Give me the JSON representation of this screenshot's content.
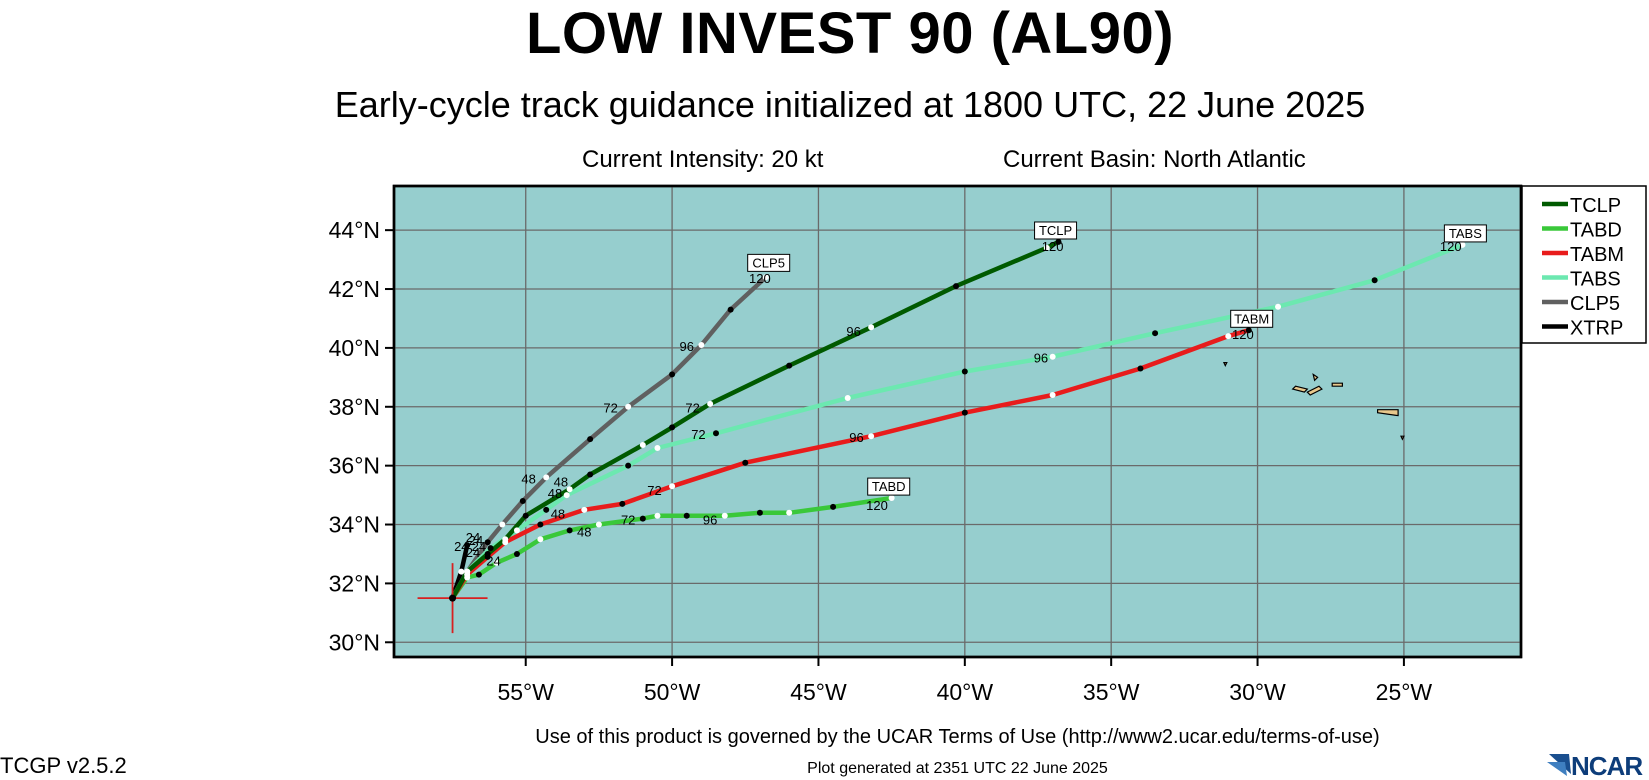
{
  "title": "LOW INVEST 90 (AL90)",
  "subtitle": "Early-cycle track guidance initialized at 1800 UTC, 22 June 2025",
  "current_intensity": "Current Intensity: 20 kt",
  "current_basin": "Current Basin: North Atlantic",
  "terms": "Use of this product is governed by the UCAR Terms of Use (http://www2.ucar.edu/terms-of-use)",
  "version": "TCGP v2.5.2",
  "generated": "Plot generated at 2351 UTC   22 June 2025",
  "logo_text": "NCAR",
  "colors": {
    "ocean": "#96cece",
    "grid": "#6a6a6a",
    "land": "#e8c88c",
    "center_cross": "#d82020"
  },
  "map_extent": {
    "lon": [
      -59.5,
      -21
    ],
    "lat": [
      29.5,
      45.5
    ]
  },
  "ticks": {
    "lat": [
      {
        "value": 30,
        "label": "30°N"
      },
      {
        "value": 32,
        "label": "32°N"
      },
      {
        "value": 34,
        "label": "34°N"
      },
      {
        "value": 36,
        "label": "36°N"
      },
      {
        "value": 38,
        "label": "38°N"
      },
      {
        "value": 40,
        "label": "40°N"
      },
      {
        "value": 42,
        "label": "42°N"
      },
      {
        "value": 44,
        "label": "44°N"
      }
    ],
    "lon": [
      {
        "value": -55,
        "label": "55°W"
      },
      {
        "value": -50,
        "label": "50°W"
      },
      {
        "value": -45,
        "label": "45°W"
      },
      {
        "value": -40,
        "label": "40°W"
      },
      {
        "value": -35,
        "label": "35°W"
      },
      {
        "value": -30,
        "label": "30°W"
      },
      {
        "value": -25,
        "label": "25°W"
      }
    ]
  },
  "storm_center": {
    "lon": -57.5,
    "lat": 31.5
  },
  "tracks": [
    {
      "name": "TCLP",
      "color": "#005a00",
      "points": [
        [
          -57.5,
          31.5
        ],
        [
          -57.0,
          32.4
        ],
        [
          -56.3,
          33.0
        ],
        [
          -55.7,
          33.5
        ],
        [
          -55.0,
          34.3
        ],
        [
          -53.5,
          35.2
        ],
        [
          -52.8,
          35.7
        ],
        [
          -51.0,
          36.7
        ],
        [
          -50.0,
          37.3
        ],
        [
          -48.7,
          38.1
        ],
        [
          -46.0,
          39.4
        ],
        [
          -43.2,
          40.7
        ],
        [
          -40.3,
          42.1
        ],
        [
          -37.2,
          43.4
        ],
        [
          -36.8,
          43.6
        ]
      ],
      "labels": [
        {
          "text": "24",
          "lon": -56.7,
          "lat": 33.3
        },
        {
          "text": "48",
          "lon": -53.8,
          "lat": 35.3
        },
        {
          "text": "72",
          "lon": -49.3,
          "lat": 37.8
        },
        {
          "text": "96",
          "lon": -43.8,
          "lat": 40.4
        },
        {
          "text": "120",
          "lon": -37.0,
          "lat": 43.3
        }
      ],
      "tag": {
        "text": "TCLP",
        "lon": -36.9,
        "lat": 43.7
      }
    },
    {
      "name": "TABD",
      "color": "#3ac83a",
      "points": [
        [
          -57.5,
          31.5
        ],
        [
          -57.0,
          32.2
        ],
        [
          -56.6,
          32.3
        ],
        [
          -56.0,
          32.7
        ],
        [
          -55.3,
          33.0
        ],
        [
          -54.5,
          33.5
        ],
        [
          -53.5,
          33.8
        ],
        [
          -52.5,
          34.0
        ],
        [
          -51.0,
          34.2
        ],
        [
          -50.5,
          34.3
        ],
        [
          -49.5,
          34.3
        ],
        [
          -48.2,
          34.3
        ],
        [
          -47.0,
          34.4
        ],
        [
          -46.0,
          34.4
        ],
        [
          -44.5,
          34.6
        ],
        [
          -42.5,
          34.9
        ]
      ],
      "labels": [
        {
          "text": "24",
          "lon": -56.1,
          "lat": 32.6
        },
        {
          "text": "48",
          "lon": -53.0,
          "lat": 33.6
        },
        {
          "text": "72",
          "lon": -51.5,
          "lat": 34.0
        },
        {
          "text": "96",
          "lon": -48.7,
          "lat": 34.0
        },
        {
          "text": "120",
          "lon": -43.0,
          "lat": 34.5
        }
      ],
      "tag": {
        "text": "TABD",
        "lon": -42.6,
        "lat": 35.0
      }
    },
    {
      "name": "TABM",
      "color": "#e81c1c",
      "points": [
        [
          -57.5,
          31.5
        ],
        [
          -57.0,
          32.3
        ],
        [
          -56.3,
          32.9
        ],
        [
          -55.7,
          33.4
        ],
        [
          -54.5,
          34.0
        ],
        [
          -53.0,
          34.5
        ],
        [
          -51.7,
          34.7
        ],
        [
          -50.0,
          35.3
        ],
        [
          -47.5,
          36.1
        ],
        [
          -43.2,
          37.0
        ],
        [
          -40.0,
          37.8
        ],
        [
          -37.0,
          38.4
        ],
        [
          -34.0,
          39.3
        ],
        [
          -31.0,
          40.4
        ],
        [
          -30.3,
          40.6
        ]
      ],
      "labels": [
        {
          "text": "24",
          "lon": -56.8,
          "lat": 32.9
        },
        {
          "text": "48",
          "lon": -53.9,
          "lat": 34.2
        },
        {
          "text": "72",
          "lon": -50.6,
          "lat": 35.0
        },
        {
          "text": "96",
          "lon": -43.7,
          "lat": 36.8
        },
        {
          "text": "120",
          "lon": -30.5,
          "lat": 40.3
        }
      ],
      "tag": {
        "text": "TABM",
        "lon": -30.2,
        "lat": 40.7
      }
    },
    {
      "name": "TABS",
      "color": "#6ce8b0",
      "points": [
        [
          -57.5,
          31.5
        ],
        [
          -57.0,
          32.4
        ],
        [
          -56.2,
          33.2
        ],
        [
          -55.3,
          33.8
        ],
        [
          -54.3,
          34.5
        ],
        [
          -53.6,
          35.0
        ],
        [
          -51.5,
          36.0
        ],
        [
          -50.5,
          36.6
        ],
        [
          -48.5,
          37.1
        ],
        [
          -44.0,
          38.3
        ],
        [
          -40.0,
          39.2
        ],
        [
          -37.0,
          39.7
        ],
        [
          -33.5,
          40.5
        ],
        [
          -29.3,
          41.4
        ],
        [
          -26.0,
          42.3
        ],
        [
          -23.0,
          43.5
        ]
      ],
      "labels": [
        {
          "text": "24",
          "lon": -56.6,
          "lat": 33.1
        },
        {
          "text": "48",
          "lon": -54.0,
          "lat": 34.9
        },
        {
          "text": "72",
          "lon": -49.1,
          "lat": 36.9
        },
        {
          "text": "96",
          "lon": -37.4,
          "lat": 39.5
        },
        {
          "text": "120",
          "lon": -23.4,
          "lat": 43.3
        }
      ],
      "tag": {
        "text": "TABS",
        "lon": -22.9,
        "lat": 43.6
      }
    },
    {
      "name": "CLP5",
      "color": "#606060",
      "points": [
        [
          -57.5,
          31.5
        ],
        [
          -57.0,
          32.4
        ],
        [
          -56.3,
          33.4
        ],
        [
          -55.8,
          34.0
        ],
        [
          -55.1,
          34.8
        ],
        [
          -54.3,
          35.6
        ],
        [
          -52.8,
          36.9
        ],
        [
          -51.5,
          38.0
        ],
        [
          -50.0,
          39.1
        ],
        [
          -49.0,
          40.1
        ],
        [
          -48.0,
          41.3
        ],
        [
          -46.8,
          42.4
        ]
      ],
      "labels": [
        {
          "text": "24",
          "lon": -57.2,
          "lat": 33.1
        },
        {
          "text": "48",
          "lon": -54.9,
          "lat": 35.4
        },
        {
          "text": "72",
          "lon": -52.1,
          "lat": 37.8
        },
        {
          "text": "96",
          "lon": -49.5,
          "lat": 39.9
        },
        {
          "text": "120",
          "lon": -47.0,
          "lat": 42.2
        }
      ],
      "tag": {
        "text": "CLP5",
        "lon": -46.7,
        "lat": 42.6
      }
    },
    {
      "name": "XTRP",
      "color": "#000000",
      "points": [
        [
          -57.5,
          31.5
        ],
        [
          -57.2,
          32.4
        ],
        [
          -57.0,
          33.3
        ]
      ],
      "labels": [
        {
          "text": "24",
          "lon": -56.8,
          "lat": 33.4
        }
      ],
      "tag": null
    }
  ],
  "islands": [
    [
      [
        -31.1,
        39.4
      ],
      [
        -31.05,
        39.5
      ],
      [
        -31.15,
        39.5
      ]
    ],
    [
      [
        -28.7,
        38.7
      ],
      [
        -28.3,
        38.6
      ],
      [
        -28.4,
        38.5
      ],
      [
        -28.8,
        38.6
      ]
    ],
    [
      [
        -28.3,
        38.5
      ],
      [
        -27.9,
        38.7
      ],
      [
        -27.8,
        38.6
      ],
      [
        -28.2,
        38.4
      ]
    ],
    [
      [
        -27.45,
        38.8
      ],
      [
        -27.1,
        38.8
      ],
      [
        -27.1,
        38.7
      ],
      [
        -27.45,
        38.7
      ]
    ],
    [
      [
        -25.9,
        37.9
      ],
      [
        -25.2,
        37.9
      ],
      [
        -25.2,
        37.7
      ],
      [
        -25.9,
        37.8
      ]
    ],
    [
      [
        -25.1,
        37.0
      ],
      [
        -25.0,
        37.0
      ],
      [
        -25.05,
        36.9
      ]
    ],
    [
      [
        -28.1,
        39.1
      ],
      [
        -27.95,
        39.0
      ],
      [
        -28.05,
        38.9
      ]
    ]
  ]
}
